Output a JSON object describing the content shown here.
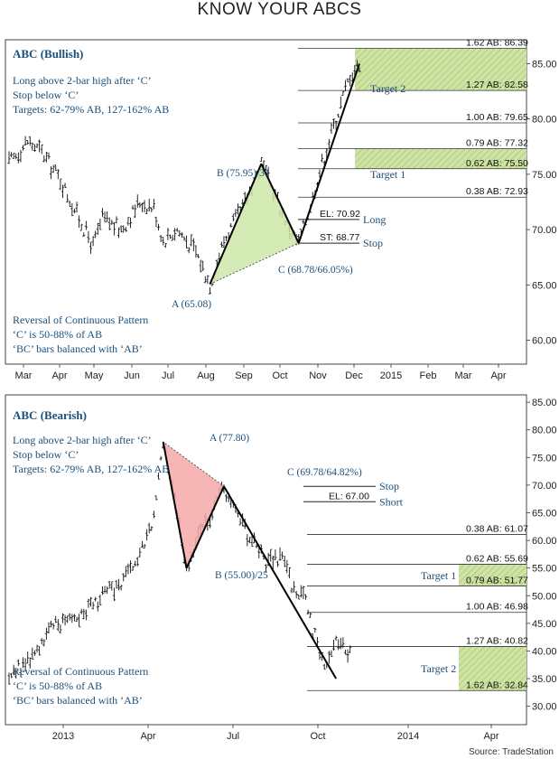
{
  "title": "KNOW YOUR ABCS",
  "source": "Source: TradeStation",
  "chart_data": [
    {
      "type": "ohlc",
      "panel_title": "ABC (Bullish)",
      "notes_top": [
        "Long above 2-bar high after ‘C’",
        "Stop below ‘C’",
        "Targets: 62-79% AB, 127-162% AB"
      ],
      "notes_bottom": [
        "Reversal of Continuous Pattern",
        "‘C’ is 50-88% of AB",
        "‘BC’ bars balanced with ‘AB’"
      ],
      "ylim": [
        58,
        87
      ],
      "yticks": [
        60,
        65,
        70,
        75,
        80,
        85
      ],
      "ytick_labels": [
        "60.00",
        "65.00",
        "70.00",
        "75.00",
        "80.00",
        "85.00"
      ],
      "xtick_labels": [
        "Mar",
        "Apr",
        "May",
        "Jun",
        "Jul",
        "Aug",
        "Sep",
        "Oct",
        "Nov",
        "Dec",
        "2015",
        "Feb",
        "Mar",
        "Apr"
      ],
      "price_path": [
        [
          0,
          76.0
        ],
        [
          8,
          78.0
        ],
        [
          14,
          77.0
        ],
        [
          22,
          74.5
        ],
        [
          30,
          71.0
        ],
        [
          36,
          68.5
        ],
        [
          40,
          71.0
        ],
        [
          48,
          70.0
        ],
        [
          56,
          72.5
        ],
        [
          62,
          72.0
        ],
        [
          66,
          69.0
        ],
        [
          72,
          70.0
        ],
        [
          80,
          68.0
        ],
        [
          86,
          65.08
        ],
        [
          92,
          69.0
        ],
        [
          100,
          72.0
        ],
        [
          108,
          75.95
        ],
        [
          114,
          73.0
        ],
        [
          120,
          70.0
        ],
        [
          124,
          68.78
        ],
        [
          128,
          71.5
        ],
        [
          134,
          76.0
        ],
        [
          140,
          80.0
        ],
        [
          146,
          84.0
        ],
        [
          150,
          85.0
        ]
      ],
      "points": [
        {
          "label": "A (65.08)",
          "value": 65.08
        },
        {
          "label": "B (75.95)/31",
          "value": 75.95
        },
        {
          "label": "C (68.78/66.05%)",
          "value": 68.78
        }
      ],
      "levels": [
        {
          "label": "1.62 AB: 86.39",
          "value": 86.39
        },
        {
          "label": "1.27 AB: 82.58",
          "value": 82.58
        },
        {
          "label": "1.00 AB: 79.65",
          "value": 79.65
        },
        {
          "label": "0.79 AB: 77.32",
          "value": 77.32
        },
        {
          "label": "0.62 AB: 75.50",
          "value": 75.5
        },
        {
          "label": "0.38 AB: 72.93",
          "value": 72.93
        }
      ],
      "trade_levels": [
        {
          "label": "EL: 70.92",
          "value": 70.92,
          "tag": "Long"
        },
        {
          "label": "ST: 68.77",
          "value": 68.77,
          "tag": "Stop"
        }
      ],
      "targets": [
        {
          "label": "Target 2",
          "from": 82.58,
          "to": 86.39
        },
        {
          "label": "Target 1",
          "from": 75.5,
          "to": 77.32
        }
      ]
    },
    {
      "type": "ohlc",
      "panel_title": "ABC (Bearish)",
      "notes_top": [
        "Long above 2-bar high after ‘C’",
        "Stop below ‘C’",
        "Targets: 62-79% AB, 127-162% AB"
      ],
      "notes_bottom": [
        "Reversal of Continuous Pattern",
        "‘C’ is 50-88% of AB",
        "‘BC’ bars balanced with ‘AB’"
      ],
      "ylim": [
        27,
        86
      ],
      "yticks": [
        30,
        35,
        40,
        45,
        50,
        55,
        60,
        65,
        70,
        75,
        80,
        85
      ],
      "ytick_labels": [
        "30.00",
        "35.00",
        "40.00",
        "45.00",
        "50.00",
        "55.00",
        "60.00",
        "65.00",
        "70.00",
        "75.00",
        "80.00",
        "85.00"
      ],
      "xtick_labels": [
        "2013",
        "Apr",
        "Jul",
        "Oct",
        "2014",
        "Apr"
      ],
      "price_path": [
        [
          0,
          36.0
        ],
        [
          8,
          38.0
        ],
        [
          16,
          43.0
        ],
        [
          24,
          46.0
        ],
        [
          32,
          47.0
        ],
        [
          40,
          50.0
        ],
        [
          48,
          52.0
        ],
        [
          56,
          57.0
        ],
        [
          62,
          64.0
        ],
        [
          66,
          77.8
        ],
        [
          70,
          70.0
        ],
        [
          76,
          55.0
        ],
        [
          82,
          62.0
        ],
        [
          88,
          66.0
        ],
        [
          92,
          69.78
        ],
        [
          98,
          64.0
        ],
        [
          104,
          60.0
        ],
        [
          110,
          56.0
        ],
        [
          116,
          57.0
        ],
        [
          122,
          51.0
        ],
        [
          126,
          50.0
        ],
        [
          130,
          44.0
        ],
        [
          136,
          37.0
        ],
        [
          140,
          42.0
        ],
        [
          146,
          40.0
        ]
      ],
      "points": [
        {
          "label": "A (77.80)",
          "value": 77.8
        },
        {
          "label": "B (55.00)/25",
          "value": 55.0
        },
        {
          "label": "C (69.78/64.82%)",
          "value": 69.78
        }
      ],
      "levels": [
        {
          "label": "0.38 AB: 61.07",
          "value": 61.07
        },
        {
          "label": "0.62 AB: 55.69",
          "value": 55.69
        },
        {
          "label": "0.79 AB: 51.77",
          "value": 51.77
        },
        {
          "label": "1.00 AB: 46.98",
          "value": 46.98
        },
        {
          "label": "1.27 AB: 40.82",
          "value": 40.82
        },
        {
          "label": "1.62 AB: 32.84",
          "value": 32.84
        }
      ],
      "trade_levels": [
        {
          "label": "",
          "value": 69.78,
          "tag": "Stop"
        },
        {
          "label": "EL: 67.00",
          "value": 67.0,
          "tag": "Short"
        }
      ],
      "targets": [
        {
          "label": "Target 1",
          "from": 51.77,
          "to": 55.69
        },
        {
          "label": "Target 2",
          "from": 32.84,
          "to": 40.82
        }
      ]
    }
  ]
}
